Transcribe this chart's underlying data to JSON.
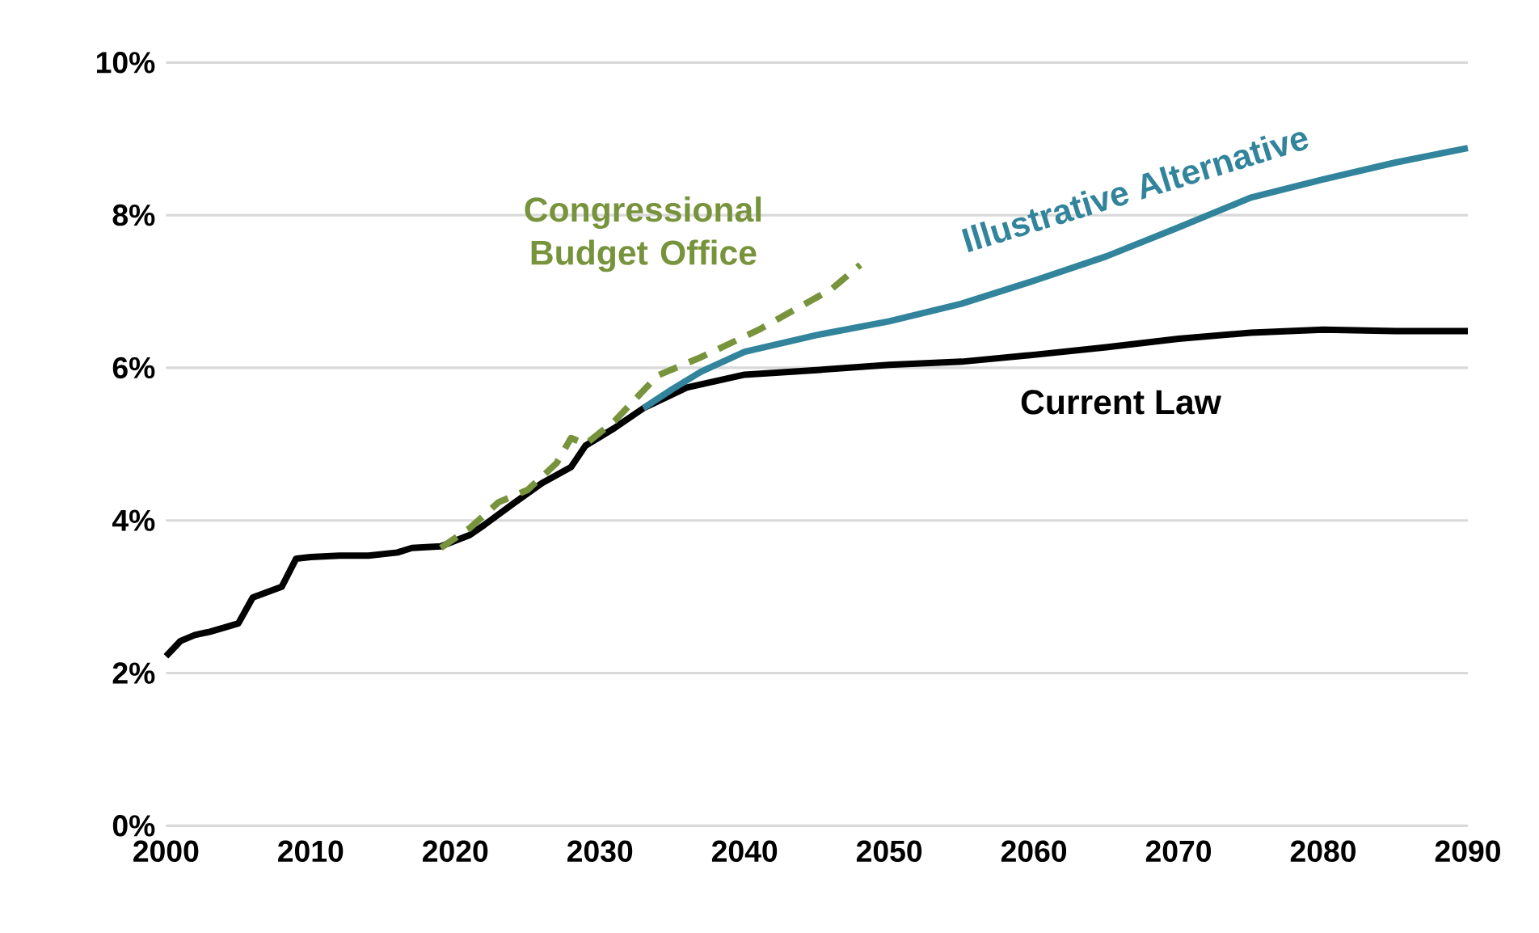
{
  "chart_data": {
    "type": "line",
    "xlim": [
      2000,
      2090
    ],
    "xticks": [
      2000,
      2010,
      2020,
      2030,
      2040,
      2050,
      2060,
      2070,
      2080,
      2090
    ],
    "ylim": [
      0,
      10
    ],
    "yticks": [
      {
        "value": 0,
        "label": "0%"
      },
      {
        "value": 2,
        "label": "2%"
      },
      {
        "value": 4,
        "label": "4%"
      },
      {
        "value": 6,
        "label": "6%"
      },
      {
        "value": 8,
        "label": "8%"
      },
      {
        "value": 10,
        "label": "10%"
      }
    ],
    "grid": "y",
    "legend": false,
    "series": [
      {
        "name": "Current Law",
        "color": "#000000",
        "line_style": "solid",
        "x": [
          2000,
          2001,
          2002,
          2003,
          2005,
          2006,
          2008,
          2009,
          2010,
          2012,
          2014,
          2016,
          2017,
          2019,
          2021,
          2022,
          2024,
          2026,
          2028,
          2029,
          2031,
          2033,
          2036,
          2040,
          2045,
          2050,
          2055,
          2060,
          2065,
          2070,
          2075,
          2080,
          2085,
          2090
        ],
        "values": [
          2.22,
          2.42,
          2.5,
          2.54,
          2.65,
          2.99,
          3.13,
          3.5,
          3.52,
          3.54,
          3.54,
          3.58,
          3.64,
          3.66,
          3.81,
          3.94,
          4.22,
          4.49,
          4.7,
          4.98,
          5.21,
          5.47,
          5.74,
          5.91,
          5.97,
          6.04,
          6.08,
          6.17,
          6.27,
          6.38,
          6.46,
          6.5,
          6.48,
          6.48
        ]
      },
      {
        "name": "Illustrative Alternative",
        "color": "#31849b",
        "line_style": "solid",
        "x": [
          2033,
          2035,
          2037,
          2040,
          2045,
          2050,
          2055,
          2060,
          2065,
          2070,
          2075,
          2080,
          2085,
          2090
        ],
        "values": [
          5.47,
          5.72,
          5.95,
          6.21,
          6.43,
          6.61,
          6.84,
          7.14,
          7.46,
          7.84,
          8.23,
          8.47,
          8.69,
          8.88
        ]
      },
      {
        "name": "Congressional Budget Office",
        "color": "#77933c",
        "line_style": "dashed",
        "x": [
          2019,
          2021,
          2023,
          2025,
          2027,
          2028,
          2029,
          2031,
          2034,
          2037,
          2041,
          2046,
          2048
        ],
        "values": [
          3.64,
          3.9,
          4.24,
          4.4,
          4.75,
          5.08,
          5.0,
          5.3,
          5.9,
          6.14,
          6.5,
          7.03,
          7.35
        ]
      }
    ]
  }
}
